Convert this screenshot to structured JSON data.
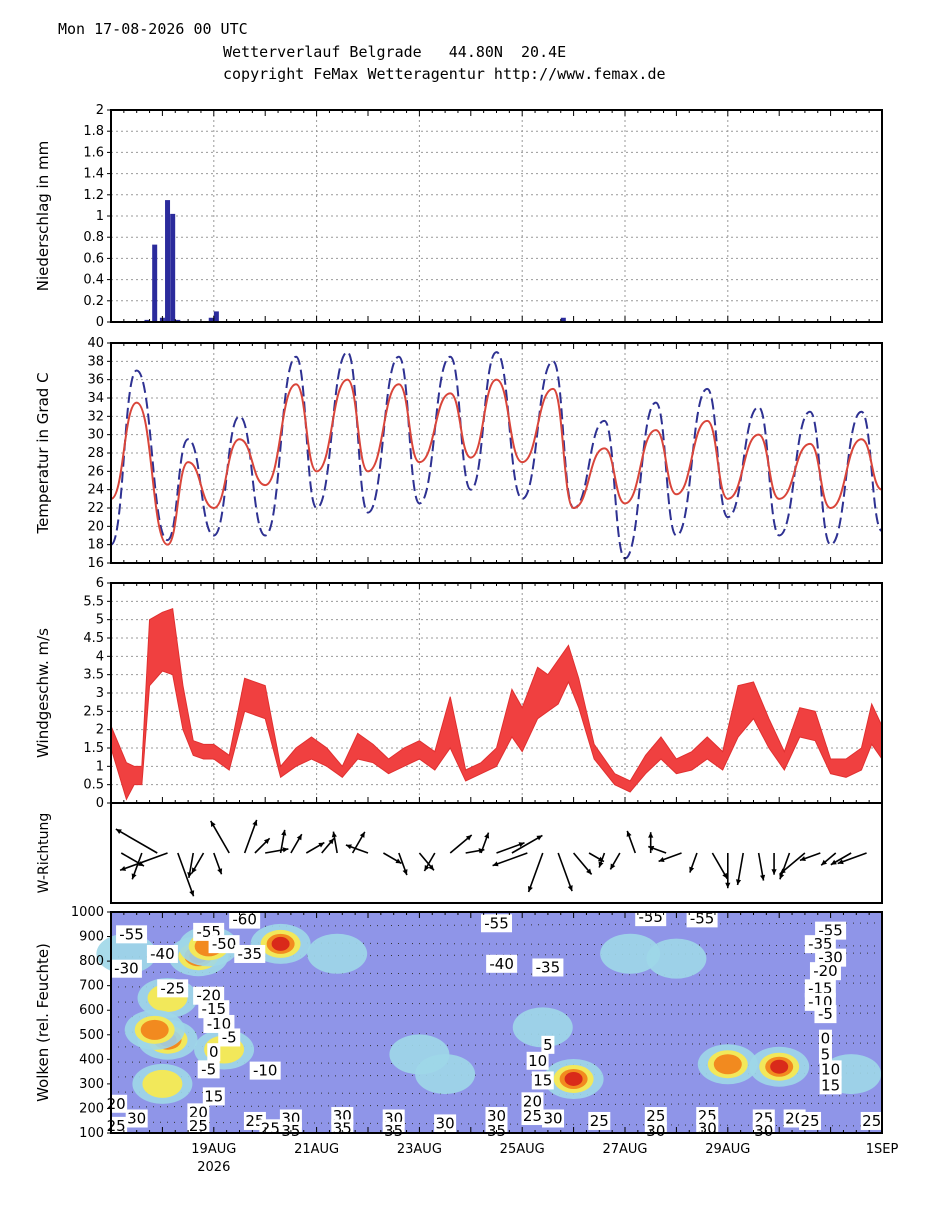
{
  "header": {
    "datetime": "Mon 17-08-2026 00 UTC",
    "location": "Wetterverlauf Belgrade   44.80N  20.4E",
    "copyright": "copyright FeMax Wetteragentur http://www.femax.de"
  },
  "x_axis": {
    "ticks": [
      "19AUG",
      "21AUG",
      "23AUG",
      "25AUG",
      "27AUG",
      "29AUG",
      "1SEP"
    ],
    "tick_days": [
      2,
      4,
      6,
      8,
      10,
      12,
      15
    ],
    "year": "2026",
    "range_days": [
      0,
      15
    ]
  },
  "colors": {
    "precip": "#2b2b9c",
    "temp_max": "#2e3192",
    "temp_mean": "#d9453a",
    "wind": "#f04040",
    "cloud_bg": "#8f95e8"
  },
  "chart_data": [
    {
      "type": "bar",
      "ylabel": "Niederschlag in mm",
      "ylim": [
        0,
        2
      ],
      "yticks": [
        "0",
        "0.2",
        "0.4",
        "0.6",
        "0.8",
        "1",
        "1.2",
        "1.4",
        "1.6",
        "1.8",
        "2"
      ],
      "grid": true,
      "x_days": [
        0.7,
        0.85,
        1.0,
        1.1,
        1.2,
        1.3,
        1.45,
        1.6,
        1.95,
        2.05,
        8.8
      ],
      "values": [
        0.02,
        0.73,
        0.04,
        1.15,
        1.02,
        0.02,
        0.01,
        0.01,
        0.04,
        0.1,
        0.04
      ]
    },
    {
      "type": "line",
      "ylabel": "Temperatur in Grad C",
      "ylim": [
        16,
        40
      ],
      "yticks": [
        "16",
        "18",
        "20",
        "22",
        "24",
        "26",
        "28",
        "30",
        "32",
        "34",
        "36",
        "38",
        "40"
      ],
      "grid": true,
      "series": [
        {
          "style": "dashed",
          "color": "#2e3192",
          "x_days": [
            0,
            0.5,
            1.1,
            1.5,
            2.0,
            2.5,
            3.0,
            3.6,
            4.0,
            4.6,
            5.0,
            5.6,
            6.0,
            6.6,
            7.0,
            7.5,
            8.0,
            8.6,
            9.0,
            9.6,
            10.0,
            10.6,
            11.0,
            11.6,
            12.0,
            12.6,
            13.0,
            13.6,
            14.0,
            14.6,
            15.0
          ],
          "values": [
            18,
            37,
            18.5,
            29.5,
            19,
            32,
            19,
            38.5,
            22,
            39,
            21.5,
            38.5,
            22.5,
            38.5,
            24,
            39,
            23,
            38,
            22,
            31.5,
            16.5,
            33.5,
            19,
            35,
            21,
            33,
            19,
            32.5,
            18,
            32.5,
            19.5
          ]
        },
        {
          "style": "solid",
          "color": "#d9453a",
          "x_days": [
            0,
            0.5,
            1.1,
            1.5,
            2.0,
            2.5,
            3.0,
            3.6,
            4.0,
            4.6,
            5.0,
            5.6,
            6.0,
            6.6,
            7.0,
            7.5,
            8.0,
            8.6,
            9.0,
            9.6,
            10.0,
            10.6,
            11.0,
            11.6,
            12.0,
            12.6,
            13.0,
            13.6,
            14.0,
            14.6,
            15.0
          ],
          "values": [
            23,
            33.5,
            18,
            27,
            22,
            29.5,
            24.5,
            35.5,
            26,
            36,
            26,
            35.5,
            27,
            34.5,
            27.5,
            36,
            27,
            35,
            22,
            28.5,
            22.5,
            30.5,
            23.5,
            31.5,
            23,
            30,
            23,
            29,
            22,
            29.5,
            24
          ]
        }
      ]
    },
    {
      "type": "area",
      "ylabel": "Windgeschw. m/s",
      "ylim": [
        0,
        6
      ],
      "yticks": [
        "0",
        "0.5",
        "1",
        "1.5",
        "2",
        "2.5",
        "3",
        "3.5",
        "4",
        "4.5",
        "5",
        "5.5",
        "6"
      ],
      "grid": true,
      "x_days": [
        0,
        0.3,
        0.45,
        0.6,
        0.75,
        1.0,
        1.2,
        1.4,
        1.6,
        1.8,
        2.0,
        2.3,
        2.6,
        3.0,
        3.3,
        3.6,
        3.9,
        4.2,
        4.5,
        4.8,
        5.1,
        5.4,
        5.7,
        6.0,
        6.3,
        6.6,
        6.9,
        7.2,
        7.5,
        7.8,
        8.0,
        8.3,
        8.5,
        8.7,
        8.9,
        9.1,
        9.4,
        9.8,
        10.1,
        10.4,
        10.7,
        11.0,
        11.3,
        11.6,
        11.9,
        12.2,
        12.5,
        12.8,
        13.1,
        13.4,
        13.7,
        14.0,
        14.3,
        14.6,
        14.8,
        15.0
      ],
      "low": [
        1.5,
        0.1,
        0.5,
        0.5,
        3.2,
        3.6,
        3.5,
        2.0,
        1.3,
        1.2,
        1.2,
        0.9,
        2.5,
        2.3,
        0.7,
        1.0,
        1.2,
        1.0,
        0.7,
        1.2,
        1.1,
        0.8,
        1.0,
        1.2,
        0.9,
        1.5,
        0.6,
        0.8,
        1.0,
        1.8,
        1.4,
        2.3,
        2.5,
        2.7,
        3.3,
        2.6,
        1.2,
        0.5,
        0.3,
        0.8,
        1.2,
        0.8,
        0.9,
        1.2,
        0.9,
        1.8,
        2.3,
        1.5,
        0.9,
        1.8,
        1.7,
        0.8,
        0.7,
        0.9,
        1.6,
        1.2
      ],
      "high": [
        2.1,
        1.1,
        1.0,
        1.0,
        5.0,
        5.2,
        5.3,
        3.2,
        1.7,
        1.6,
        1.6,
        1.3,
        3.4,
        3.2,
        1.0,
        1.5,
        1.8,
        1.5,
        1.0,
        1.9,
        1.6,
        1.2,
        1.5,
        1.7,
        1.4,
        2.9,
        0.9,
        1.1,
        1.5,
        3.1,
        2.6,
        3.7,
        3.5,
        3.9,
        4.3,
        3.4,
        1.6,
        0.8,
        0.6,
        1.3,
        1.8,
        1.2,
        1.4,
        1.8,
        1.4,
        3.2,
        3.3,
        2.3,
        1.4,
        2.6,
        2.5,
        1.2,
        1.2,
        1.5,
        2.7,
        2.1
      ]
    },
    {
      "type": "scatter",
      "ylabel": "W-Richtung",
      "x_days": [
        0.2,
        0.6,
        0.9,
        1.1,
        1.3,
        1.6,
        1.8,
        2.0,
        2.3,
        2.6,
        2.8,
        3.0,
        3.3,
        3.5,
        3.8,
        4.1,
        4.4,
        4.7,
        5.0,
        5.3,
        5.6,
        6.0,
        6.3,
        6.6,
        6.9,
        7.2,
        7.5,
        7.8,
        8.1,
        8.4,
        8.7,
        9.0,
        9.3,
        9.6,
        9.9,
        10.2,
        10.5,
        10.8,
        11.1,
        11.4,
        11.7,
        12.0,
        12.3,
        12.6,
        12.9,
        13.2,
        13.5,
        13.8,
        14.1,
        14.4,
        14.7
      ],
      "direction_deg": [
        120,
        200,
        300,
        250,
        160,
        190,
        210,
        160,
        330,
        20,
        45,
        80,
        10,
        30,
        60,
        40,
        350,
        30,
        290,
        120,
        160,
        140,
        210,
        50,
        80,
        20,
        70,
        60,
        250,
        200,
        160,
        140,
        120,
        200,
        210,
        340,
        0,
        290,
        250,
        200,
        150,
        180,
        190,
        170,
        180,
        200,
        230,
        250,
        230,
        240,
        250
      ],
      "speed_ms": [
        1.8,
        2.0,
        4.2,
        4.5,
        4.0,
        1.7,
        1.5,
        1.4,
        3.0,
        2.8,
        1.2,
        1.5,
        1.5,
        1.3,
        1.2,
        1.0,
        1.3,
        1.6,
        1.5,
        1.2,
        1.5,
        1.4,
        1.2,
        2.0,
        1.0,
        1.3,
        2.2,
        2.8,
        3.0,
        3.5,
        3.4,
        2.0,
        0.8,
        0.6,
        1.0,
        1.5,
        1.2,
        1.0,
        1.6,
        1.2,
        2.2,
        2.8,
        2.5,
        2.0,
        1.3,
        2.0,
        2.5,
        1.3,
        1.0,
        1.5,
        2.3
      ]
    },
    {
      "type": "heatmap",
      "ylabel": "Wolken (rel. Feuchte)",
      "ylim": [
        1000,
        100
      ],
      "yticks": [
        "100",
        "200",
        "300",
        "400",
        "500",
        "600",
        "700",
        "800",
        "900",
        "1000"
      ],
      "cloud_cells": [
        {
          "x_day": 0.3,
          "p": 270,
          "level": 0.4
        },
        {
          "x_day": 1.1,
          "p": 450,
          "level": 0.6
        },
        {
          "x_day": 1.1,
          "p": 620,
          "level": 0.95
        },
        {
          "x_day": 0.85,
          "p": 580,
          "level": 0.7
        },
        {
          "x_day": 1.0,
          "p": 800,
          "level": 0.5
        },
        {
          "x_day": 1.7,
          "p": 280,
          "level": 0.9
        },
        {
          "x_day": 1.9,
          "p": 240,
          "level": 0.8
        },
        {
          "x_day": 2.2,
          "p": 660,
          "level": 0.5
        },
        {
          "x_day": 3.3,
          "p": 230,
          "level": 0.95
        },
        {
          "x_day": 4.4,
          "p": 270,
          "level": 0.4
        },
        {
          "x_day": 6.0,
          "p": 680,
          "level": 0.3
        },
        {
          "x_day": 6.5,
          "p": 760,
          "level": 0.3
        },
        {
          "x_day": 8.4,
          "p": 570,
          "level": 0.3
        },
        {
          "x_day": 9.0,
          "p": 780,
          "level": 0.85
        },
        {
          "x_day": 10.1,
          "p": 270,
          "level": 0.25
        },
        {
          "x_day": 11.0,
          "p": 290,
          "level": 0.25
        },
        {
          "x_day": 12.0,
          "p": 720,
          "level": 0.75
        },
        {
          "x_day": 13.0,
          "p": 730,
          "level": 0.9
        },
        {
          "x_day": 14.4,
          "p": 760,
          "level": 0.35
        }
      ],
      "labels": [
        {
          "text": "-55",
          "x_day": 0.4,
          "p": 195
        },
        {
          "text": "-30",
          "x_day": 0.3,
          "p": 335
        },
        {
          "text": "-40",
          "x_day": 1.0,
          "p": 275
        },
        {
          "text": "-25",
          "x_day": 1.2,
          "p": 415
        },
        {
          "text": "-55",
          "x_day": 1.9,
          "p": 185
        },
        {
          "text": "-50",
          "x_day": 2.2,
          "p": 235
        },
        {
          "text": "-60",
          "x_day": 2.6,
          "p": 135
        },
        {
          "text": "-35",
          "x_day": 2.7,
          "p": 275
        },
        {
          "text": "-20",
          "x_day": 1.9,
          "p": 445
        },
        {
          "text": "-15",
          "x_day": 2.0,
          "p": 500
        },
        {
          "text": "-10",
          "x_day": 2.1,
          "p": 560
        },
        {
          "text": "-5",
          "x_day": 2.3,
          "p": 615
        },
        {
          "text": "0",
          "x_day": 2.0,
          "p": 675
        },
        {
          "text": "-5",
          "x_day": 1.9,
          "p": 745
        },
        {
          "text": "-10",
          "x_day": 3.0,
          "p": 750
        },
        {
          "text": "15",
          "x_day": 2.0,
          "p": 855
        },
        {
          "text": "20",
          "x_day": 1.7,
          "p": 920
        },
        {
          "text": "25",
          "x_day": 1.7,
          "p": 975
        },
        {
          "text": "20",
          "x_day": 0.1,
          "p": 885
        },
        {
          "text": "25",
          "x_day": 0.1,
          "p": 975
        },
        {
          "text": "30",
          "x_day": 0.5,
          "p": 945
        },
        {
          "text": "25",
          "x_day": 2.8,
          "p": 955
        },
        {
          "text": "25",
          "x_day": 3.1,
          "p": 985
        },
        {
          "text": "30",
          "x_day": 3.5,
          "p": 945
        },
        {
          "text": "35",
          "x_day": 3.5,
          "p": 995
        },
        {
          "text": "30",
          "x_day": 4.5,
          "p": 935
        },
        {
          "text": "35",
          "x_day": 4.5,
          "p": 985
        },
        {
          "text": "30",
          "x_day": 5.5,
          "p": 945
        },
        {
          "text": "35",
          "x_day": 5.5,
          "p": 995
        },
        {
          "text": "30",
          "x_day": 6.5,
          "p": 965
        },
        {
          "text": "-55",
          "x_day": 7.5,
          "p": 150
        },
        {
          "text": "-35",
          "x_day": 8.5,
          "p": 330
        },
        {
          "text": "-40",
          "x_day": 7.6,
          "p": 315
        },
        {
          "text": "10",
          "x_day": 8.3,
          "p": 710
        },
        {
          "text": "5",
          "x_day": 8.5,
          "p": 645
        },
        {
          "text": "15",
          "x_day": 8.4,
          "p": 790
        },
        {
          "text": "20",
          "x_day": 8.2,
          "p": 875
        },
        {
          "text": "25",
          "x_day": 8.2,
          "p": 935
        },
        {
          "text": "30",
          "x_day": 7.5,
          "p": 935
        },
        {
          "text": "30",
          "x_day": 8.6,
          "p": 945
        },
        {
          "text": "35",
          "x_day": 7.5,
          "p": 995
        },
        {
          "text": "25",
          "x_day": 9.5,
          "p": 955
        },
        {
          "text": "25",
          "x_day": 10.6,
          "p": 935
        },
        {
          "text": "30",
          "x_day": 10.6,
          "p": 995
        },
        {
          "text": "-55",
          "x_day": 10.5,
          "p": 125
        },
        {
          "text": "-55",
          "x_day": 11.5,
          "p": 130
        },
        {
          "text": "25",
          "x_day": 11.6,
          "p": 935
        },
        {
          "text": "30",
          "x_day": 11.6,
          "p": 985
        },
        {
          "text": "25",
          "x_day": 12.7,
          "p": 945
        },
        {
          "text": "30",
          "x_day": 12.7,
          "p": 995
        },
        {
          "text": "20",
          "x_day": 13.3,
          "p": 945
        },
        {
          "text": "25",
          "x_day": 13.6,
          "p": 955
        },
        {
          "text": "-55",
          "x_day": 14.0,
          "p": 180
        },
        {
          "text": "-35",
          "x_day": 13.8,
          "p": 235
        },
        {
          "text": "-30",
          "x_day": 14.0,
          "p": 290
        },
        {
          "text": "-20",
          "x_day": 13.9,
          "p": 345
        },
        {
          "text": "-15",
          "x_day": 13.8,
          "p": 415
        },
        {
          "text": "-10",
          "x_day": 13.8,
          "p": 470
        },
        {
          "text": "-5",
          "x_day": 13.9,
          "p": 520
        },
        {
          "text": "0",
          "x_day": 13.9,
          "p": 620
        },
        {
          "text": "5",
          "x_day": 13.9,
          "p": 685
        },
        {
          "text": "10",
          "x_day": 14.0,
          "p": 745
        },
        {
          "text": "15",
          "x_day": 14.0,
          "p": 810
        },
        {
          "text": "25",
          "x_day": 14.8,
          "p": 955
        }
      ]
    }
  ]
}
